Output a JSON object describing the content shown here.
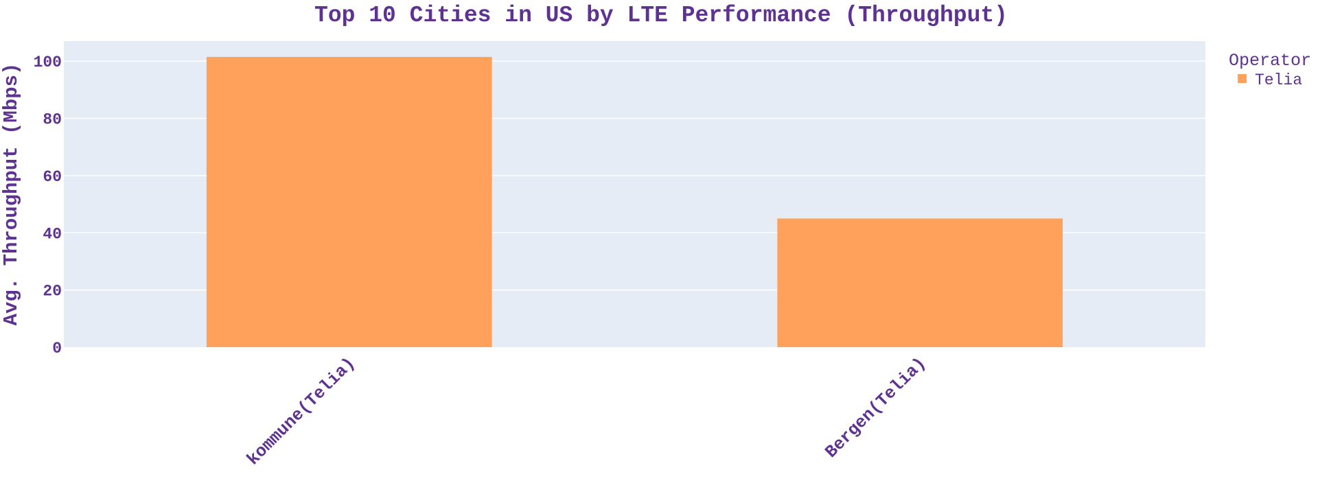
{
  "chart_data": {
    "type": "bar",
    "title": "Top 10 Cities in US by LTE Performance (Throughput)",
    "xlabel": "",
    "ylabel": "Avg. Throughput (Mbps)",
    "categories": [
      "kommune(Telia)",
      "Bergen(Telia)"
    ],
    "series": [
      {
        "name": "Telia",
        "values": [
          101.5,
          45
        ]
      }
    ],
    "ylim": [
      0,
      107
    ],
    "yticks": [
      0,
      20,
      40,
      60,
      80,
      100
    ],
    "grid": true,
    "legend": {
      "title": "Operator",
      "position": "top-right"
    },
    "colors": {
      "plot_background": "#e5ecf6",
      "bar": "#ffa15a",
      "text": "#5e3290",
      "grid": "#ffffff"
    }
  }
}
